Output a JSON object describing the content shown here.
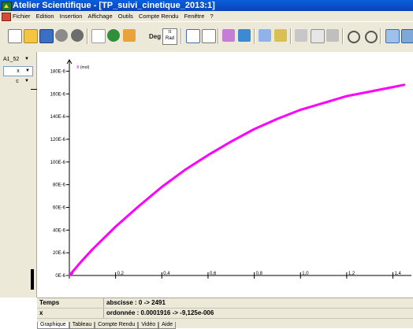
{
  "window": {
    "title": "Atelier Scientifique - [TP_suivi_cinetique_2013:1]"
  },
  "menu": [
    "Fichier",
    "Edition",
    "Insertion",
    "Affichage",
    "Outils",
    "Compte Rendu",
    "Fenêtre",
    "?"
  ],
  "toolbar": {
    "deg_label": "Deg",
    "rad_label_top": "π",
    "rad_label_bottom": "Rad",
    "icons": [
      "new-icon",
      "open-icon",
      "save-icon",
      "settings-icon",
      "settings2-icon",
      "waveform-icon",
      "refresh-icon",
      "fit-icon",
      "grid-icon",
      "crosshair-icon",
      "chart-icon",
      "book-icon",
      "tangent-icon",
      "brush-icon",
      "scissors-icon",
      "copy-icon",
      "paste-icon",
      "undo-icon",
      "redo-icon",
      "window-icon",
      "window2-icon"
    ]
  },
  "left_panel": {
    "selector": "A1_52",
    "x_var": "x",
    "c_var": "c"
  },
  "info": {
    "x_label": "Temps",
    "x_range": "abscisse : 0 -> 2491",
    "y_label": "x",
    "y_range": "ordonnée : 0.0001916 -> -9,125e-006"
  },
  "tabs": [
    "Graphique",
    "Tableau",
    "Compte Rendu",
    "Vidéo",
    "Aide"
  ],
  "chart_data": {
    "type": "line",
    "series": [
      {
        "name": "x (mol)",
        "color": "#ff00ff",
        "x": [
          0.0,
          0.05,
          0.1,
          0.2,
          0.3,
          0.4,
          0.5,
          0.6,
          0.7,
          0.8,
          0.9,
          1.0,
          1.1,
          1.2,
          1.3,
          1.4,
          1.45
        ],
        "y": [
          0.0,
          1.2e-05,
          2.3e-05,
          4.3e-05,
          6.1e-05,
          7.8e-05,
          9.3e-05,
          0.000106,
          0.000118,
          0.000129,
          0.000138,
          0.000146,
          0.000152,
          0.000158,
          0.000162,
          0.000166,
          0.000168
        ]
      }
    ],
    "ylabel": "x (mol)",
    "xticks": [
      "0",
      "0,2",
      "0,4",
      "0,6",
      "0,8",
      "1,0",
      "1,2",
      "1,4"
    ],
    "yticks": [
      "0E-6",
      "20E-6",
      "40E-6",
      "60E-6",
      "80E-6",
      "100E-6",
      "120E-6",
      "140E-6",
      "160E-6",
      "180E-6"
    ],
    "xlim": [
      0,
      1.48
    ],
    "ylim": [
      0,
      0.00019
    ],
    "grid": false
  }
}
